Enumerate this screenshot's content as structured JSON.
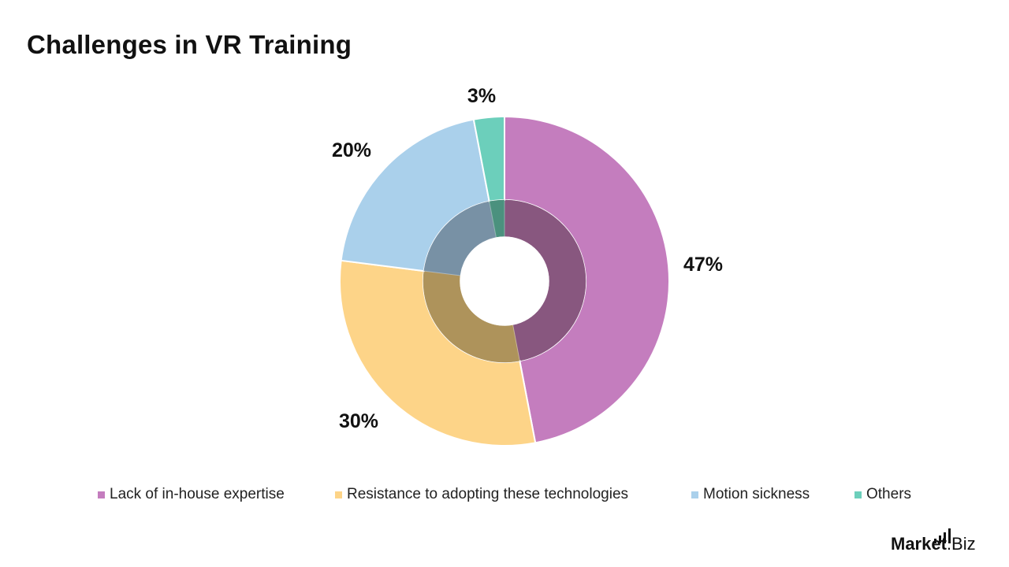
{
  "title": "Challenges in VR Training",
  "chart_data": {
    "type": "pie",
    "style": "donut",
    "title": "Challenges in VR Training",
    "categories": [
      "Lack of in-house expertise",
      "Resistance to adopting these technologies",
      "Motion sickness",
      "Others"
    ],
    "values": [
      47,
      30,
      20,
      3
    ],
    "data_labels": [
      "47%",
      "30%",
      "20%",
      "3%"
    ],
    "colors": [
      "#c47dbe",
      "#fdd488",
      "#aad0eb",
      "#6ccfbb"
    ],
    "inner_ring_colors": [
      "#88577f",
      "#ae935b",
      "#7891a5",
      "#4b917e"
    ],
    "legend_position": "bottom"
  },
  "legend": [
    {
      "label": "Lack of in-house expertise",
      "color": "#c47dbe"
    },
    {
      "label": "Resistance to adopting these technologies",
      "color": "#fdd488"
    },
    {
      "label": "Motion sickness",
      "color": "#aad0eb"
    },
    {
      "label": "Others",
      "color": "#6ccfbb"
    }
  ],
  "logo": {
    "word1": "Market",
    "word2": ".Biz"
  }
}
